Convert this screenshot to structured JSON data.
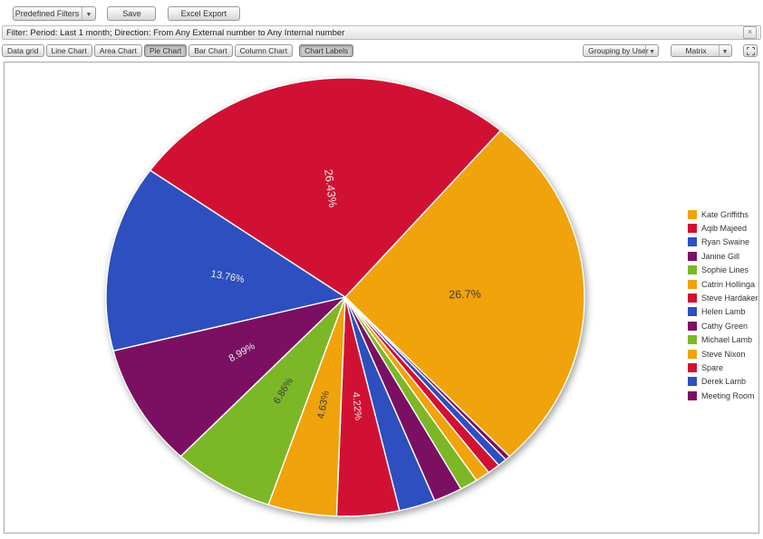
{
  "toolbar_top": {
    "predefined_filters_label": "Predefined Filters",
    "save_label": "Save",
    "excel_export_label": "Excel Export",
    "caret": "▼"
  },
  "filter_bar": {
    "text": "Filter: Period: Last 1 month; Direction: From Any External number to Any Internal number",
    "close_glyph": "×"
  },
  "chart_toolbar": {
    "buttons": [
      "Data grid",
      "Line Chart",
      "Area Chart",
      "Pie Chart",
      "Bar Chart",
      "Column Chart",
      "Chart Labels"
    ],
    "active_buttons": [
      "Pie Chart",
      "Chart Labels"
    ],
    "grouping_label": "Grouping by User",
    "matrix_label": "Matrix",
    "caret": "▼"
  },
  "chart_data": {
    "type": "pie",
    "title": "",
    "legend_position": "right",
    "grid": false,
    "start_angle_deg": 40.5,
    "render_order_clockwise": [
      0,
      13,
      12,
      11,
      10,
      9,
      8,
      7,
      6,
      5,
      4,
      3,
      2,
      1
    ],
    "slices": [
      {
        "name": "Kate Griffiths",
        "value": 26.7,
        "label": "26.7%",
        "color": "#F0A30A",
        "label_color": "#3c3c3c"
      },
      {
        "name": "Aqib Majeed",
        "value": 26.43,
        "label": "26.43%",
        "color": "#D11133",
        "label_color": "#ededed"
      },
      {
        "name": "Ryan Swaine",
        "value": 13.76,
        "label": "13.76%",
        "color": "#2D4FBF",
        "label_color": "#ededed"
      },
      {
        "name": "Janine Gill",
        "value": 8.99,
        "label": "8.99%",
        "color": "#7B1062",
        "label_color": "#ededed"
      },
      {
        "name": "Sophie Lines",
        "value": 6.86,
        "label": "6.86%",
        "color": "#7CB728",
        "label_color": "#3c3c3c"
      },
      {
        "name": "Catrin Hollinga",
        "value": 4.63,
        "label": "4.63%",
        "color": "#F0A30A",
        "label_color": "#3c3c3c"
      },
      {
        "name": "Steve Hardaker",
        "value": 4.22,
        "label": "4.22%",
        "color": "#D11133",
        "label_color": "#ededed"
      },
      {
        "name": "Helen Lamb",
        "value": 2.45,
        "label": "",
        "color": "#2D4FBF",
        "label_color": "#ededed"
      },
      {
        "name": "Cathy Green",
        "value": 1.95,
        "label": "",
        "color": "#7B1062",
        "label_color": "#ededed"
      },
      {
        "name": "Michael Lamb",
        "value": 1.2,
        "label": "",
        "color": "#7CB728",
        "label_color": "#3c3c3c"
      },
      {
        "name": "Steve Nixon",
        "value": 1.0,
        "label": "",
        "color": "#F0A30A",
        "label_color": "#3c3c3c"
      },
      {
        "name": "Spare",
        "value": 0.85,
        "label": "",
        "color": "#D11133",
        "label_color": "#ededed"
      },
      {
        "name": "Derek Lamb",
        "value": 0.62,
        "label": "",
        "color": "#2D4FBF",
        "label_color": "#ededed"
      },
      {
        "name": "Meeting Room",
        "value": 0.34,
        "label": "",
        "color": "#7B1062",
        "label_color": "#ededed"
      }
    ]
  }
}
